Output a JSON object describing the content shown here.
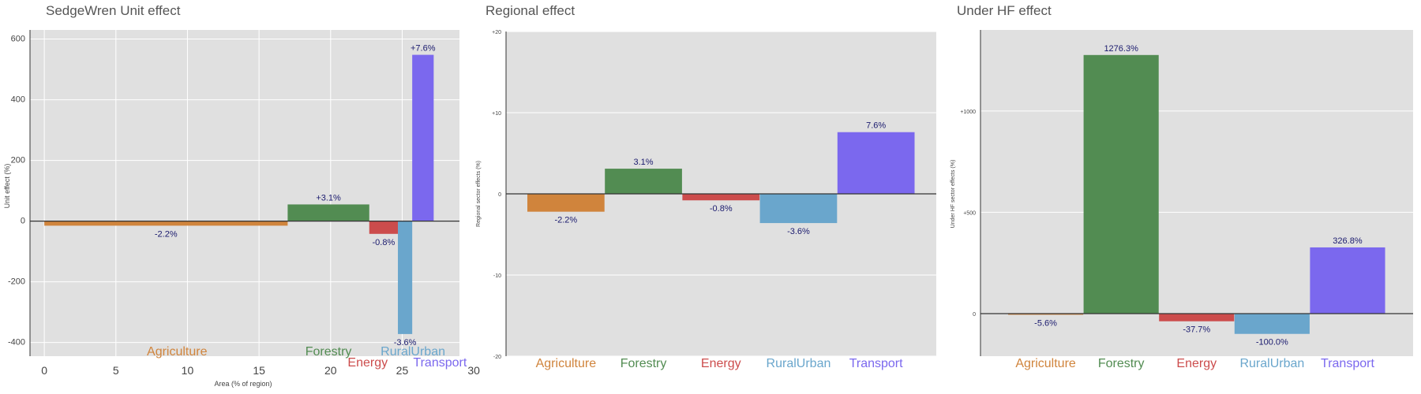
{
  "colors": {
    "Agriculture": "#d0843c",
    "Forestry": "#528c52",
    "Energy": "#cc4c4c",
    "RuralUrban": "#6aa6cc",
    "Transport": "#7b68ee"
  },
  "chart_data": [
    {
      "type": "bar",
      "title": "SedgeWren Unit effect",
      "xlabel": "Area (% of region)",
      "ylabel": "Unit effect (%)",
      "xlim": [
        -1,
        29
      ],
      "ylim": [
        -445,
        630
      ],
      "xticks": [
        "0",
        "5",
        "10",
        "15",
        "20",
        "25",
        "30"
      ],
      "xtick_values": [
        0,
        5,
        10,
        15,
        20,
        25,
        30
      ],
      "yticks": [
        "-400",
        "-200",
        "0",
        "200",
        "400",
        "600"
      ],
      "ytick_values": [
        -400,
        -200,
        0,
        200,
        400,
        600
      ],
      "categories": [
        "Agriculture",
        "Forestry",
        "Energy",
        "RuralUrban",
        "Transport"
      ],
      "area_start": [
        0,
        17,
        22.7,
        24.7,
        25.7
      ],
      "area_end": [
        17,
        22.7,
        24.7,
        25.7,
        27.2
      ],
      "values": [
        -15,
        55,
        -42,
        -372,
        548
      ],
      "value_labels": [
        "-2.2%",
        "+3.1%",
        "-0.8%",
        "-3.6%",
        "+7.6%"
      ]
    },
    {
      "type": "bar",
      "title": "Regional effect",
      "xlabel": "",
      "ylabel": "Regional sector effects (%)",
      "ylim": [
        -20,
        20
      ],
      "yticks": [
        "-20",
        "-10",
        "0",
        "+10",
        "+20"
      ],
      "ytick_values": [
        -20,
        -10,
        0,
        10,
        20
      ],
      "categories": [
        "Agriculture",
        "Forestry",
        "Energy",
        "RuralUrban",
        "Transport"
      ],
      "values": [
        -2.2,
        3.1,
        -0.8,
        -3.6,
        7.6
      ],
      "value_labels": [
        "-2.2%",
        "3.1%",
        "-0.8%",
        "-3.6%",
        "7.6%"
      ]
    },
    {
      "type": "bar",
      "title": "Under HF effect",
      "xlabel": "",
      "ylabel": "Under HF sector effects (%)",
      "ylim": [
        -210,
        1400
      ],
      "yticks": [
        "0",
        "+500",
        "+1000"
      ],
      "ytick_values": [
        0,
        500,
        1000
      ],
      "categories": [
        "Agriculture",
        "Forestry",
        "Energy",
        "RuralUrban",
        "Transport"
      ],
      "values": [
        -5.6,
        1276.3,
        -37.7,
        -100.0,
        326.8
      ],
      "value_labels": [
        "-5.6%",
        "1276.3%",
        "-37.7%",
        "-100.0%",
        "326.8%"
      ]
    }
  ]
}
